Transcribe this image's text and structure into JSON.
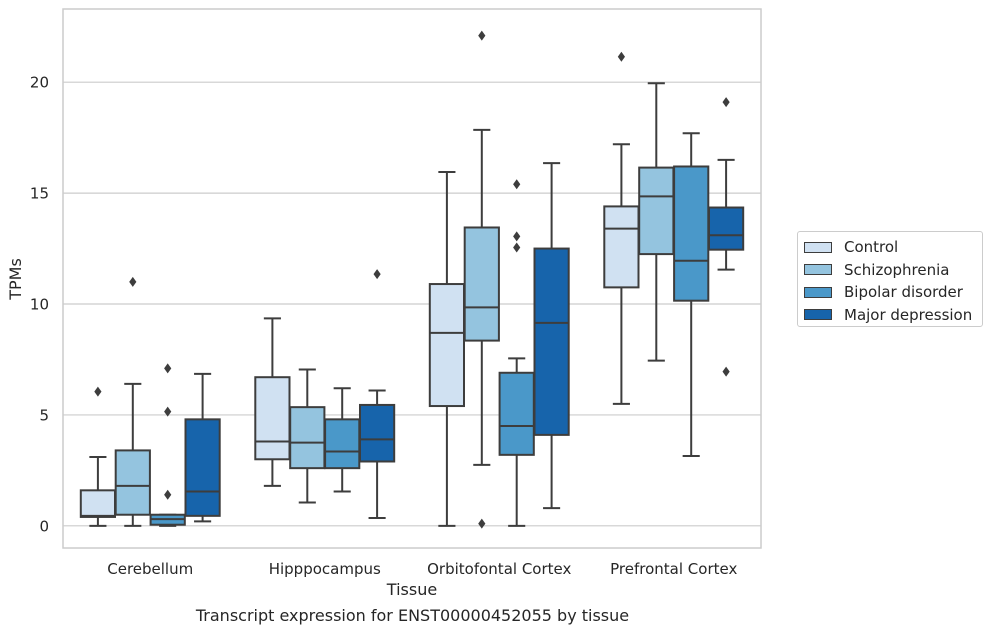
{
  "caption": "Transcript expression for ENST00000452055 by tissue",
  "chart_data": {
    "type": "box",
    "xlabel": "Tissue",
    "ylabel": "TPMs",
    "ylim": [
      -1,
      23.3
    ],
    "yticks": [
      0,
      5,
      10,
      15,
      20
    ],
    "grid": true,
    "legend_position": "right",
    "categories": [
      "Cerebellum",
      "Hipppocampus",
      "Orbitofontal Cortex",
      "Prefrontal Cortex"
    ],
    "series": [
      {
        "name": "Control",
        "color": "#d0e1f2",
        "boxes": [
          {
            "whislo": 0.0,
            "q1": 0.4,
            "med": 0.45,
            "q3": 1.6,
            "whishi": 3.1,
            "fliers": [
              6.05
            ]
          },
          {
            "whislo": 1.8,
            "q1": 3.0,
            "med": 3.8,
            "q3": 6.7,
            "whishi": 9.35,
            "fliers": []
          },
          {
            "whislo": 0.0,
            "q1": 5.4,
            "med": 8.7,
            "q3": 10.9,
            "whishi": 15.95,
            "fliers": []
          },
          {
            "whislo": 5.5,
            "q1": 10.75,
            "med": 13.4,
            "q3": 14.4,
            "whishi": 17.2,
            "fliers": [
              21.15
            ]
          }
        ]
      },
      {
        "name": "Schizophrenia",
        "color": "#94c4df",
        "boxes": [
          {
            "whislo": 0.0,
            "q1": 0.5,
            "med": 1.8,
            "q3": 3.4,
            "whishi": 6.4,
            "fliers": [
              11.0
            ]
          },
          {
            "whislo": 1.05,
            "q1": 2.6,
            "med": 3.75,
            "q3": 5.35,
            "whishi": 7.05,
            "fliers": []
          },
          {
            "whislo": 2.75,
            "q1": 8.35,
            "med": 9.85,
            "q3": 13.45,
            "whishi": 17.85,
            "fliers": [
              22.1,
              0.1
            ]
          },
          {
            "whislo": 7.45,
            "q1": 12.25,
            "med": 14.85,
            "q3": 16.15,
            "whishi": 19.95,
            "fliers": []
          }
        ]
      },
      {
        "name": "Bipolar disorder",
        "color": "#4a98c9",
        "boxes": [
          {
            "whislo": 0.0,
            "q1": 0.05,
            "med": 0.3,
            "q3": 0.5,
            "whishi": 0.5,
            "fliers": [
              7.1,
              5.15,
              1.4
            ]
          },
          {
            "whislo": 1.55,
            "q1": 2.6,
            "med": 3.35,
            "q3": 4.8,
            "whishi": 6.2,
            "fliers": []
          },
          {
            "whislo": 0.0,
            "q1": 3.2,
            "med": 4.5,
            "q3": 6.9,
            "whishi": 7.55,
            "fliers": [
              15.4,
              13.05,
              12.55
            ]
          },
          {
            "whislo": 3.15,
            "q1": 10.15,
            "med": 11.95,
            "q3": 16.2,
            "whishi": 17.7,
            "fliers": []
          }
        ]
      },
      {
        "name": "Major depression",
        "color": "#1764ab",
        "boxes": [
          {
            "whislo": 0.2,
            "q1": 0.45,
            "med": 1.55,
            "q3": 4.8,
            "whishi": 6.85,
            "fliers": []
          },
          {
            "whislo": 0.35,
            "q1": 2.9,
            "med": 3.9,
            "q3": 5.45,
            "whishi": 6.1,
            "fliers": [
              11.35
            ]
          },
          {
            "whislo": 0.8,
            "q1": 4.1,
            "med": 9.15,
            "q3": 12.5,
            "whishi": 16.35,
            "fliers": []
          },
          {
            "whislo": 11.55,
            "q1": 12.45,
            "med": 13.1,
            "q3": 14.35,
            "whishi": 16.5,
            "fliers": [
              19.1,
              6.95
            ]
          }
        ]
      }
    ]
  }
}
